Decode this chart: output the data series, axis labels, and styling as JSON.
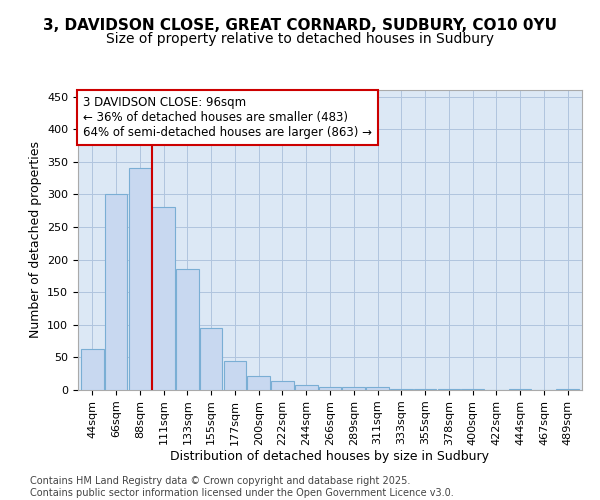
{
  "title1": "3, DAVIDSON CLOSE, GREAT CORNARD, SUDBURY, CO10 0YU",
  "title2": "Size of property relative to detached houses in Sudbury",
  "xlabel": "Distribution of detached houses by size in Sudbury",
  "ylabel": "Number of detached properties",
  "bar_color": "#c8d8f0",
  "bar_edge_color": "#7aaed4",
  "grid_color": "#b0c4de",
  "plot_bg_color": "#dce8f5",
  "figure_bg_color": "#ffffff",
  "annotation_box_color": "#ffffff",
  "annotation_box_edge": "#cc0000",
  "vline_color": "#cc0000",
  "bins": [
    "44sqm",
    "66sqm",
    "88sqm",
    "111sqm",
    "133sqm",
    "155sqm",
    "177sqm",
    "200sqm",
    "222sqm",
    "244sqm",
    "266sqm",
    "289sqm",
    "311sqm",
    "333sqm",
    "355sqm",
    "378sqm",
    "400sqm",
    "422sqm",
    "444sqm",
    "467sqm",
    "489sqm"
  ],
  "values": [
    63,
    300,
    340,
    280,
    185,
    95,
    45,
    22,
    14,
    7,
    5,
    4,
    4,
    2,
    2,
    2,
    2,
    0,
    2,
    0,
    2
  ],
  "vline_x": 2.5,
  "annotation_text": "3 DAVIDSON CLOSE: 96sqm\n← 36% of detached houses are smaller (483)\n64% of semi-detached houses are larger (863) →",
  "footer_text": "Contains HM Land Registry data © Crown copyright and database right 2025.\nContains public sector information licensed under the Open Government Licence v3.0.",
  "ylim": [
    0,
    460
  ],
  "yticks": [
    0,
    50,
    100,
    150,
    200,
    250,
    300,
    350,
    400,
    450
  ],
  "title1_fontsize": 11,
  "title2_fontsize": 10,
  "axis_label_fontsize": 9,
  "tick_fontsize": 8,
  "annotation_fontsize": 8.5,
  "footer_fontsize": 7
}
